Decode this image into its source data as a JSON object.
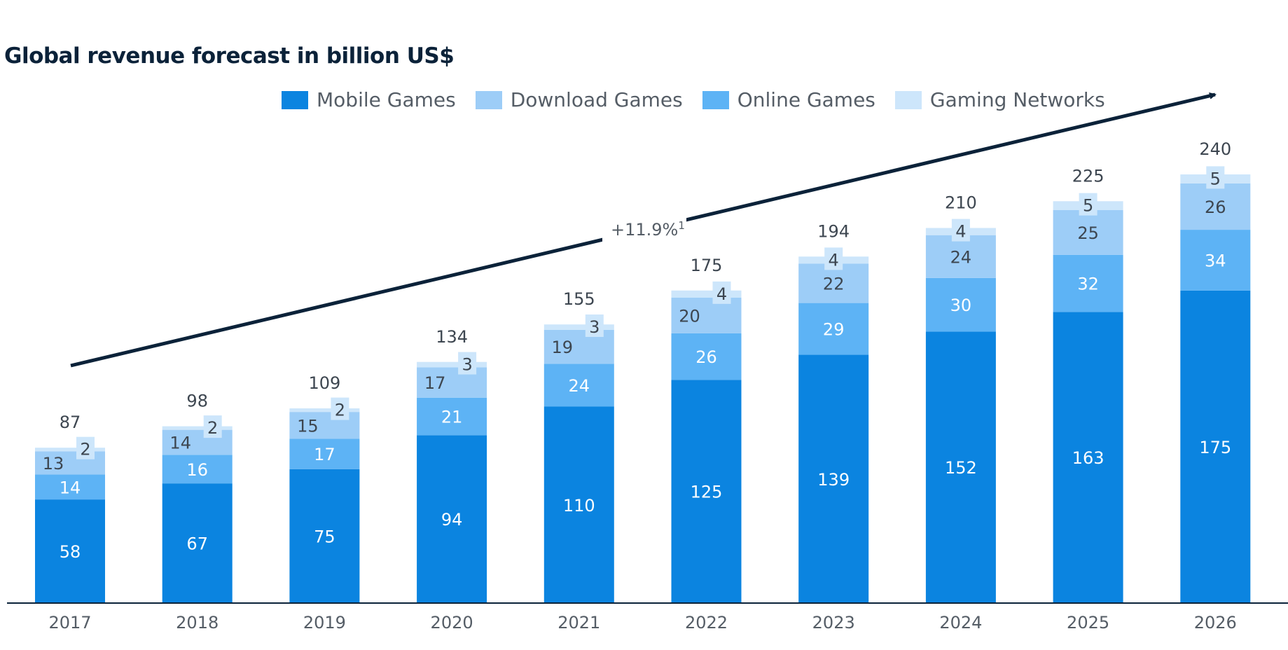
{
  "chart_data": {
    "type": "bar",
    "stacked": true,
    "title": "Global revenue forecast in billion US$",
    "categories": [
      "2017",
      "2018",
      "2019",
      "2020",
      "2021",
      "2022",
      "2023",
      "2024",
      "2025",
      "2026"
    ],
    "series": [
      {
        "name": "Mobile Games",
        "color": "#0b84e0",
        "values": [
          58,
          67,
          75,
          94,
          110,
          125,
          139,
          152,
          163,
          175
        ]
      },
      {
        "name": "Online Games",
        "color": "#5db3f5",
        "values": [
          14,
          16,
          17,
          21,
          24,
          26,
          29,
          30,
          32,
          34
        ]
      },
      {
        "name": "Download Games",
        "color": "#9dcdf7",
        "values": [
          13,
          14,
          15,
          17,
          19,
          20,
          22,
          24,
          25,
          26
        ]
      },
      {
        "name": "Gaming Networks",
        "color": "#cde6fb",
        "values": [
          2,
          2,
          2,
          3,
          3,
          4,
          4,
          4,
          5,
          5
        ]
      }
    ],
    "totals": [
      "87",
      "98",
      "109",
      "134",
      "155",
      "175",
      "194",
      "210",
      "225",
      "240"
    ],
    "legend_order": [
      "Mobile Games",
      "Download Games",
      "Online Games",
      "Gaming Networks"
    ],
    "legend_position": "top",
    "annotation": {
      "text": "+11.9%",
      "superscript": "1"
    },
    "ylim": [
      0,
      240
    ],
    "grid": false
  }
}
